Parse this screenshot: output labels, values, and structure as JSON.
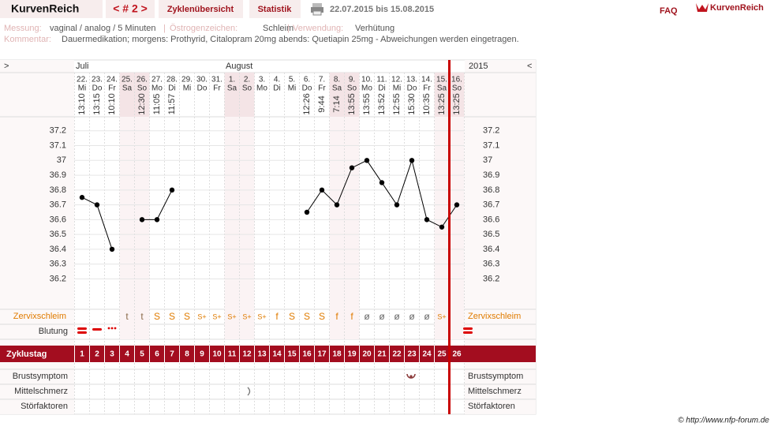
{
  "header": {
    "brand": "KurvenReich",
    "cycle": "< # 2 >",
    "tabs": [
      "Zyklenübersicht",
      "Statistik"
    ],
    "range": "22.07.2015 bis 15.08.2015",
    "faq": "FAQ",
    "logo": "KurvenReich"
  },
  "info": {
    "measurement_label": "Messung:",
    "measurement": "vaginal / analog / 5 Minuten",
    "estrogen_label": "Östrogenzeichen:",
    "estrogen": "Schleim",
    "use_label": "Verwendung:",
    "use": "Verhütung",
    "comment_label": "Kommentar:",
    "comment": "Dauermedikation; morgens: Prothyrid, Citalopram 20mg abends: Quetiapin 25mg - Abweichungen werden eingetragen."
  },
  "nav": {
    "left": ">",
    "months": [
      "Juli",
      "August"
    ],
    "year": "2015",
    "right": "<"
  },
  "chart_data": {
    "type": "line",
    "categories": [
      "22.",
      "23.",
      "24.",
      "25.",
      "26.",
      "27.",
      "28.",
      "29.",
      "30.",
      "31.",
      "1.",
      "2.",
      "3.",
      "4.",
      "5.",
      "6.",
      "7.",
      "8.",
      "9.",
      "10.",
      "11.",
      "12.",
      "13.",
      "14.",
      "15.",
      "16."
    ],
    "weekdays": [
      "Mi",
      "Do",
      "Fr",
      "Sa",
      "So",
      "Mo",
      "Di",
      "Mi",
      "Do",
      "Fr",
      "Sa",
      "So",
      "Mo",
      "Di",
      "Mi",
      "Do",
      "Fr",
      "Sa",
      "So",
      "Mo",
      "Di",
      "Mi",
      "Do",
      "Fr",
      "Sa",
      "So"
    ],
    "times": [
      "13:10",
      "13:15",
      "10:10",
      null,
      "12:30",
      "11:05",
      "11:57",
      null,
      null,
      null,
      null,
      null,
      null,
      null,
      null,
      "12:26",
      "9:44",
      "7:14",
      "13:55",
      "13:55",
      "13:52",
      "12:55",
      "15:30",
      "10:35",
      "13:25",
      "13:25"
    ],
    "values": [
      36.75,
      36.7,
      36.4,
      null,
      36.6,
      36.6,
      36.8,
      null,
      null,
      null,
      null,
      null,
      null,
      null,
      null,
      36.65,
      36.8,
      36.7,
      36.95,
      37.0,
      36.85,
      36.7,
      37.0,
      36.6,
      36.55,
      36.7
    ],
    "color": "#000000",
    "ylim": [
      36.0,
      37.3
    ],
    "yticks": [
      36.2,
      36.3,
      36.4,
      36.5,
      36.6,
      36.7,
      36.8,
      36.9,
      37,
      37.1,
      37.2
    ],
    "grid": true
  },
  "rows": {
    "cervix": {
      "label": "Zervixschleim",
      "values": [
        null,
        null,
        null,
        "t",
        "t",
        "S",
        "S",
        "S",
        "S+",
        "S+",
        "S+",
        "S+",
        "S+",
        "f",
        "S",
        "S",
        "S",
        "f",
        "f",
        "ø",
        "ø",
        "ø",
        "ø",
        "ø",
        "S+",
        null
      ]
    },
    "bleeding": {
      "label": "Blutung"
    },
    "cycle_day": {
      "label": "Zyklustag",
      "values": [
        1,
        2,
        3,
        4,
        5,
        6,
        7,
        8,
        9,
        10,
        11,
        12,
        13,
        14,
        15,
        16,
        17,
        18,
        19,
        20,
        21,
        22,
        23,
        24,
        25,
        26
      ]
    },
    "breast": {
      "label": "Brustsymptom"
    },
    "midpain": {
      "label": "Mittelschmerz"
    },
    "disturbance": {
      "label": "Störfaktoren"
    }
  },
  "footer": "© http://www.nfp-forum.de"
}
